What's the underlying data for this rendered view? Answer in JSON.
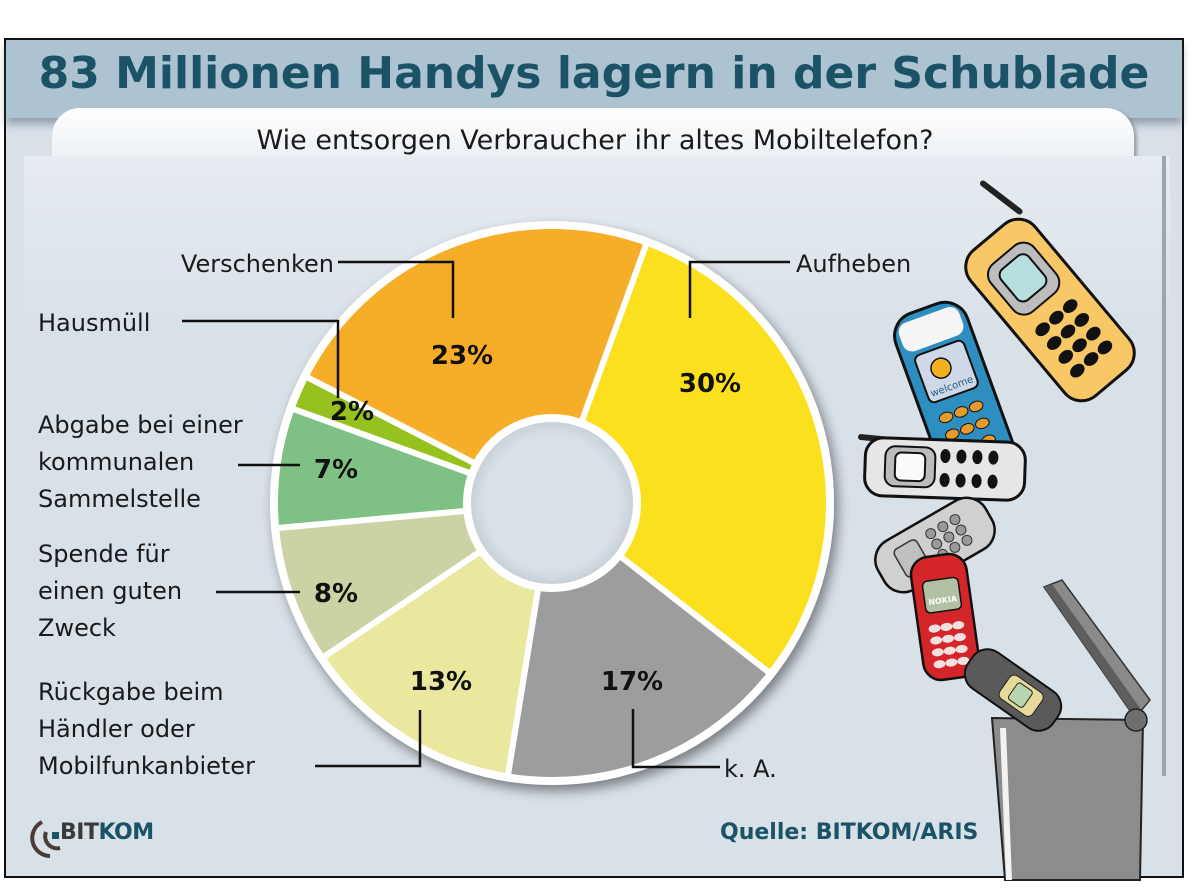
{
  "header": {
    "title": "83 Millionen Handys lagern in der Schublade",
    "subtitle": "Wie entsorgen Verbraucher ihr altes Mobiltelefon?"
  },
  "footer": {
    "logo_left": "BIT",
    "logo_right": "KOM",
    "source": "Quelle: BITKOM/ARIS"
  },
  "illustration": {
    "description": "stack of old mobile phones falling into an open trash bin",
    "phone_screen_text": [
      "welcome",
      "NOKIA"
    ]
  },
  "chart_data": {
    "type": "pie",
    "variant": "donut",
    "title": "Wie entsorgen Verbraucher ihr altes Mobiltelefon?",
    "unit": "%",
    "slices": [
      {
        "label": "Aufheben",
        "value": 30,
        "display": "30%",
        "color": "#fbe01e"
      },
      {
        "label": "k. A.",
        "value": 17,
        "display": "17%",
        "color": "#9d9d9f"
      },
      {
        "label": "Rückgabe beim Händler oder Mobilfunkanbieter",
        "label_lines": [
          "Rückgabe beim",
          "Händler oder",
          "Mobilfunkanbieter"
        ],
        "value": 13,
        "display": "13%",
        "color": "#eae79f"
      },
      {
        "label": "Spende für einen guten Zweck",
        "label_lines": [
          "Spende für",
          "einen guten",
          "Zweck"
        ],
        "value": 8,
        "display": "8%",
        "color": "#cdd2a4"
      },
      {
        "label": "Abgabe bei einer kommunalen Sammelstelle",
        "label_lines": [
          "Abgabe bei einer",
          "kommunalen",
          "Sammelstelle"
        ],
        "value": 7,
        "display": "7%",
        "color": "#7fc184"
      },
      {
        "label": "Hausmüll",
        "value": 2,
        "display": "2%",
        "color": "#97c11f"
      },
      {
        "label": "Verschenken",
        "value": 23,
        "display": "23%",
        "color": "#f6ae28"
      }
    ],
    "start_angle_deg": 20,
    "direction": "clockwise",
    "legend": "callout-labels"
  }
}
